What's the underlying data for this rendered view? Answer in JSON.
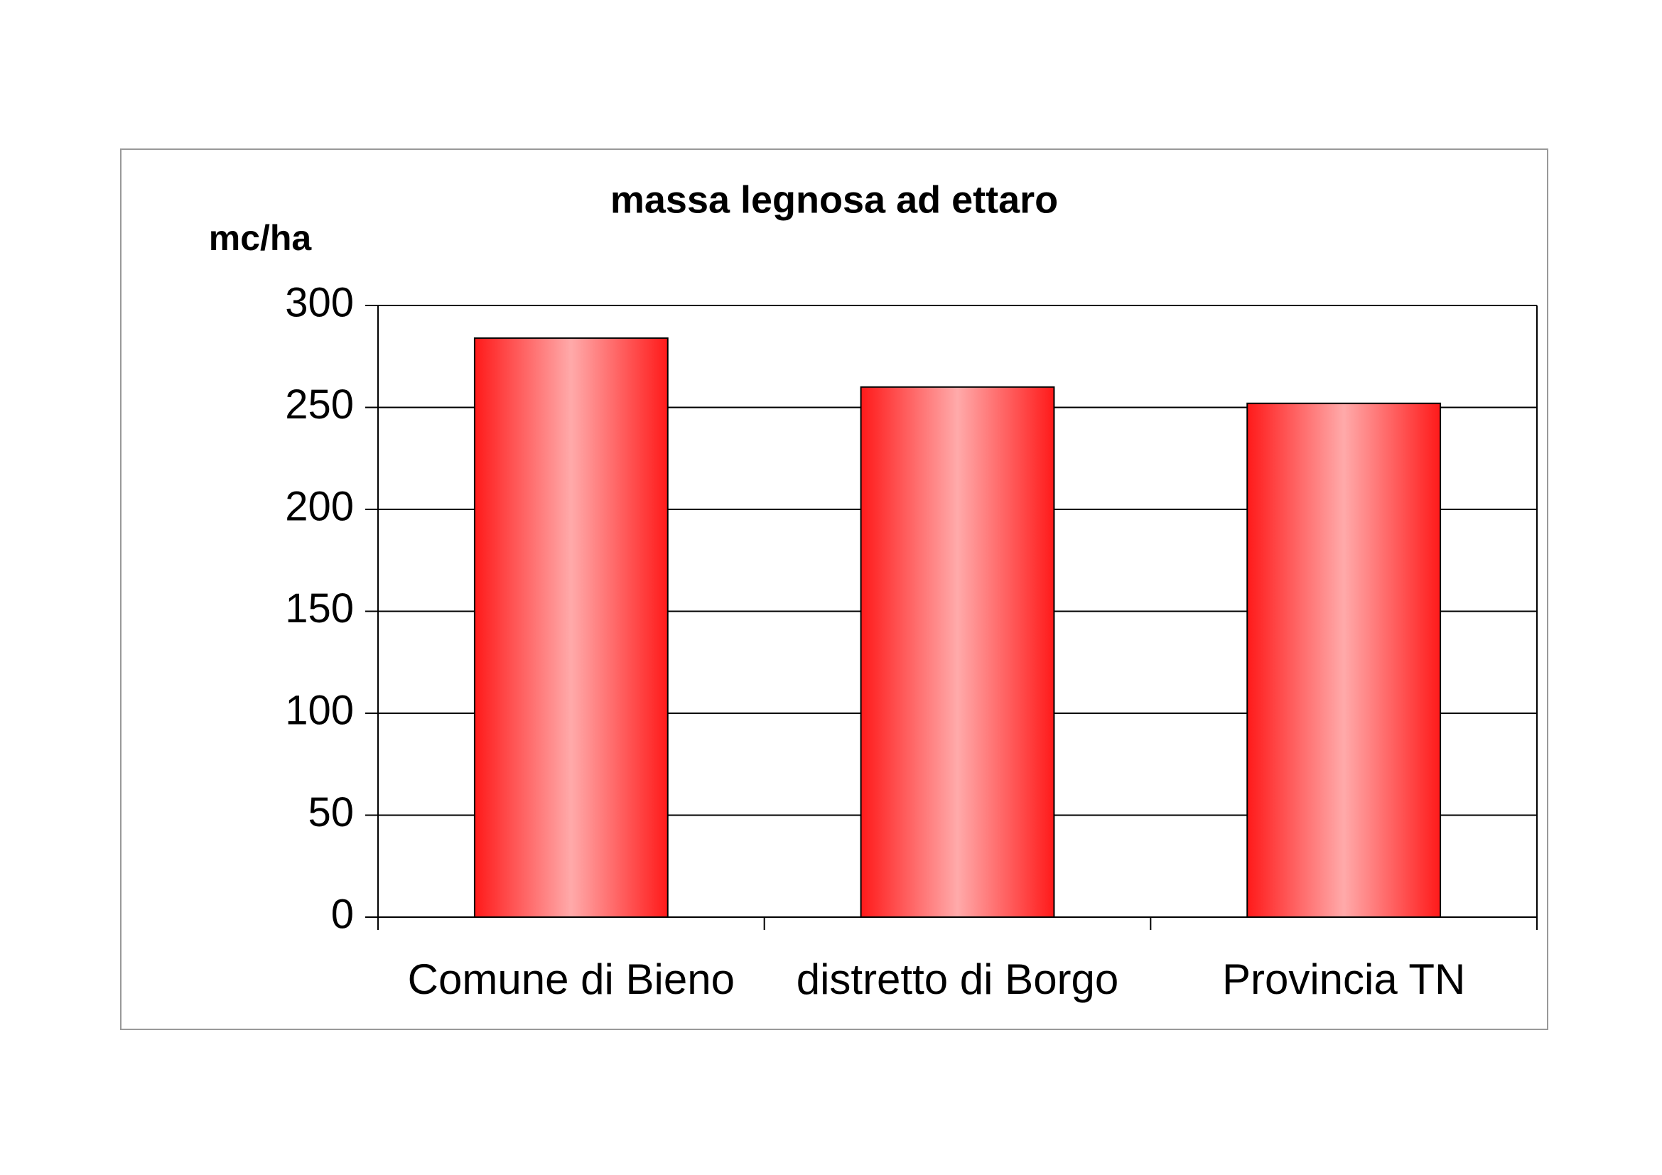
{
  "chart_data": {
    "type": "bar",
    "title": "massa legnosa ad ettaro",
    "y_label": "mc/ha",
    "categories": [
      "Comune di Bieno",
      "distretto di Borgo",
      "Provincia TN"
    ],
    "values": [
      284,
      260,
      252
    ],
    "color": "#ff1a1a",
    "ylim": [
      0,
      300
    ],
    "yticks": [
      0,
      50,
      100,
      150,
      200,
      250,
      300
    ],
    "grid": true
  }
}
